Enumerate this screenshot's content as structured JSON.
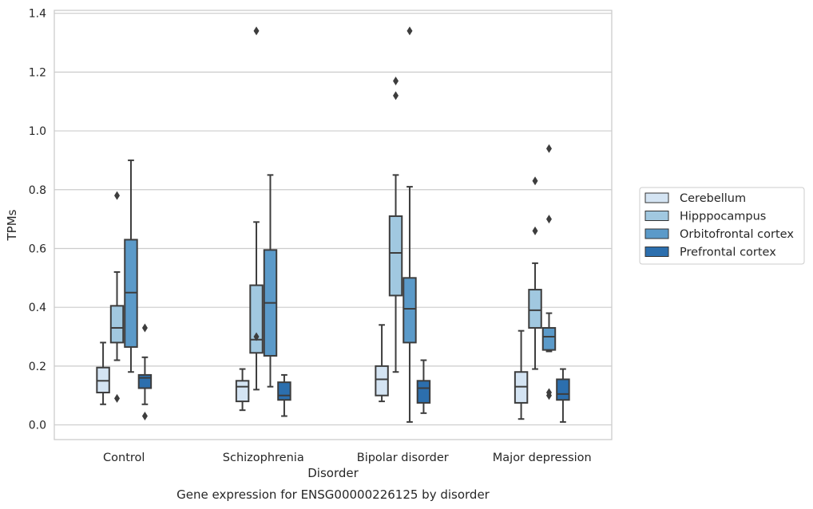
{
  "chart_data": {
    "type": "box",
    "caption": "Gene expression for ENSG00000226125 by disorder",
    "xlabel": "Disorder",
    "ylabel": "TPMs",
    "ylim": [
      -0.05,
      1.41
    ],
    "yticks": [
      "0.0",
      "0.2",
      "0.4",
      "0.6",
      "0.8",
      "1.0",
      "1.2",
      "1.4"
    ],
    "ytick_values": [
      0.0,
      0.2,
      0.4,
      0.6,
      0.8,
      1.0,
      1.2,
      1.4
    ],
    "grid": "horizontal",
    "legend_position": "right",
    "categories": [
      "Control",
      "Schizophrenia",
      "Bipolar disorder",
      "Major depression"
    ],
    "series": [
      {
        "name": "Cerebellum",
        "color": "#d4e4f3",
        "boxes": [
          {
            "whislo": 0.07,
            "q1": 0.11,
            "med": 0.15,
            "q3": 0.195,
            "whishi": 0.28,
            "fliers": []
          },
          {
            "whislo": 0.05,
            "q1": 0.08,
            "med": 0.13,
            "q3": 0.15,
            "whishi": 0.19,
            "fliers": []
          },
          {
            "whislo": 0.08,
            "q1": 0.1,
            "med": 0.155,
            "q3": 0.2,
            "whishi": 0.34,
            "fliers": []
          },
          {
            "whislo": 0.02,
            "q1": 0.075,
            "med": 0.13,
            "q3": 0.18,
            "whishi": 0.32,
            "fliers": []
          }
        ]
      },
      {
        "name": "Hipppocampus",
        "color": "#a1c8e0",
        "boxes": [
          {
            "whislo": 0.22,
            "q1": 0.28,
            "med": 0.33,
            "q3": 0.405,
            "whishi": 0.52,
            "fliers": [
              0.78,
              0.09
            ]
          },
          {
            "whislo": 0.12,
            "q1": 0.245,
            "med": 0.29,
            "q3": 0.475,
            "whishi": 0.69,
            "fliers": [
              1.34,
              0.3
            ]
          },
          {
            "whislo": 0.18,
            "q1": 0.44,
            "med": 0.585,
            "q3": 0.71,
            "whishi": 0.85,
            "fliers": [
              1.17,
              1.12
            ]
          },
          {
            "whislo": 0.19,
            "q1": 0.33,
            "med": 0.39,
            "q3": 0.46,
            "whishi": 0.55,
            "fliers": [
              0.83,
              0.66
            ]
          }
        ]
      },
      {
        "name": "Orbitofrontal cortex",
        "color": "#5b9ac9",
        "boxes": [
          {
            "whislo": 0.18,
            "q1": 0.265,
            "med": 0.45,
            "q3": 0.63,
            "whishi": 0.9,
            "fliers": []
          },
          {
            "whislo": 0.13,
            "q1": 0.235,
            "med": 0.415,
            "q3": 0.595,
            "whishi": 0.85,
            "fliers": []
          },
          {
            "whislo": 0.01,
            "q1": 0.28,
            "med": 0.395,
            "q3": 0.5,
            "whishi": 0.81,
            "fliers": [
              1.34
            ]
          },
          {
            "whislo": 0.25,
            "q1": 0.255,
            "med": 0.3,
            "q3": 0.33,
            "whishi": 0.38,
            "fliers": [
              0.94,
              0.7,
              0.11,
              0.1
            ]
          }
        ]
      },
      {
        "name": "Prefrontal cortex",
        "color": "#2c6fae",
        "boxes": [
          {
            "whislo": 0.07,
            "q1": 0.125,
            "med": 0.16,
            "q3": 0.17,
            "whishi": 0.23,
            "fliers": [
              0.33,
              0.03
            ]
          },
          {
            "whislo": 0.03,
            "q1": 0.085,
            "med": 0.1,
            "q3": 0.145,
            "whishi": 0.17,
            "fliers": []
          },
          {
            "whislo": 0.04,
            "q1": 0.075,
            "med": 0.125,
            "q3": 0.15,
            "whishi": 0.22,
            "fliers": []
          },
          {
            "whislo": 0.01,
            "q1": 0.085,
            "med": 0.105,
            "q3": 0.155,
            "whishi": 0.19,
            "fliers": []
          }
        ]
      }
    ]
  }
}
